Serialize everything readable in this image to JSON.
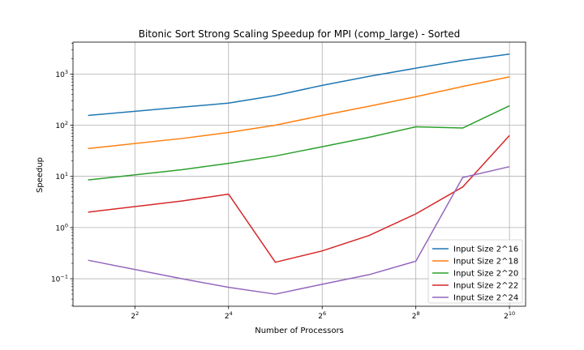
{
  "chart_data": {
    "type": "line",
    "title": "Bitonic Sort Strong Scaling Speedup for MPI (comp_large) - Sorted",
    "xlabel": "Number of Processors",
    "ylabel": "Speedup",
    "x_scale": "log2",
    "y_scale": "log10",
    "x": [
      2,
      8,
      16,
      32,
      64,
      128,
      256,
      512,
      1024
    ],
    "x_ticks": [
      {
        "value": 4,
        "label": "2^2",
        "base": "2",
        "exp": "2"
      },
      {
        "value": 16,
        "label": "2^4",
        "base": "2",
        "exp": "4"
      },
      {
        "value": 64,
        "label": "2^6",
        "base": "2",
        "exp": "6"
      },
      {
        "value": 256,
        "label": "2^8",
        "base": "2",
        "exp": "8"
      },
      {
        "value": 1024,
        "label": "2^10",
        "base": "2",
        "exp": "10"
      }
    ],
    "y_ticks": [
      {
        "value": 0.1,
        "base": "10",
        "exp": "−1"
      },
      {
        "value": 1,
        "base": "10",
        "exp": "0"
      },
      {
        "value": 10,
        "base": "10",
        "exp": "1"
      },
      {
        "value": 100,
        "base": "10",
        "exp": "2"
      },
      {
        "value": 1000,
        "base": "10",
        "exp": "3"
      }
    ],
    "xlim": [
      1.6,
      1300
    ],
    "ylim": [
      0.029,
      4200
    ],
    "grid": true,
    "legend_position": "lower-right",
    "series": [
      {
        "name": "Input Size 2^16",
        "color": "#1f77b4",
        "values": [
          155,
          225,
          270,
          380,
          600,
          900,
          1300,
          1850,
          2450
        ]
      },
      {
        "name": "Input Size 2^18",
        "color": "#ff7f0e",
        "values": [
          35,
          55,
          72,
          100,
          155,
          235,
          360,
          570,
          880
        ]
      },
      {
        "name": "Input Size 2^20",
        "color": "#2ca02c",
        "values": [
          8.5,
          13.5,
          18,
          25,
          38,
          58,
          93,
          88,
          240
        ]
      },
      {
        "name": "Input Size 2^22",
        "color": "#d62728",
        "values": [
          2.0,
          3.3,
          4.5,
          0.21,
          0.35,
          0.7,
          1.85,
          6.2,
          63
        ]
      },
      {
        "name": "Input Size 2^24",
        "color": "#9467bd",
        "values": [
          0.23,
          0.1,
          0.068,
          0.05,
          0.078,
          0.12,
          0.22,
          9.5,
          15.5
        ]
      }
    ]
  }
}
